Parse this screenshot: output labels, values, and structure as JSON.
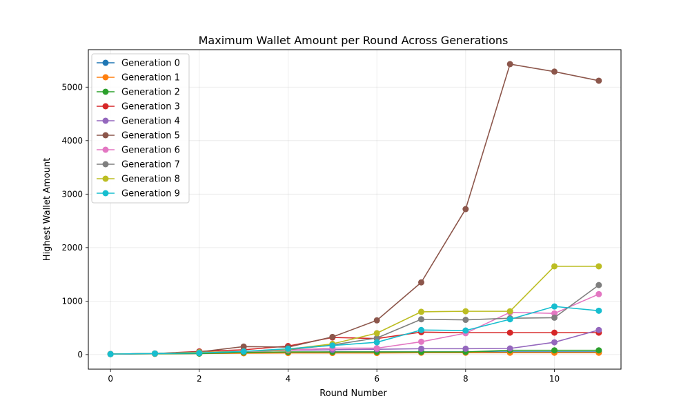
{
  "chart_data": {
    "type": "line",
    "title": "Maximum Wallet Amount per Round Across Generations",
    "xlabel": "Round Number",
    "ylabel": "Highest Wallet Amount",
    "xlim": [
      -0.5,
      11.5
    ],
    "ylim": [
      -272,
      5700
    ],
    "xticks": [
      0,
      2,
      4,
      6,
      8,
      10
    ],
    "yticks": [
      0,
      1000,
      2000,
      3000,
      4000,
      5000
    ],
    "grid": true,
    "legend_position": "upper-left",
    "x": [
      0,
      1,
      2,
      3,
      4,
      5,
      6,
      7,
      8,
      9,
      10,
      11
    ],
    "series": [
      {
        "name": "Generation 0",
        "color": "#1f77b4",
        "values": [
          10,
          15,
          20,
          30,
          40,
          50,
          50,
          50,
          50,
          50,
          50,
          50
        ]
      },
      {
        "name": "Generation 1",
        "color": "#ff7f0e",
        "values": [
          10,
          15,
          20,
          25,
          30,
          30,
          30,
          35,
          35,
          35,
          35,
          35
        ]
      },
      {
        "name": "Generation 2",
        "color": "#2ca02c",
        "values": [
          10,
          15,
          20,
          40,
          50,
          50,
          50,
          50,
          50,
          80,
          80,
          80
        ]
      },
      {
        "name": "Generation 3",
        "color": "#d62728",
        "values": [
          10,
          20,
          60,
          90,
          160,
          320,
          300,
          420,
          410,
          410,
          410,
          410
        ]
      },
      {
        "name": "Generation 4",
        "color": "#9467bd",
        "values": [
          10,
          20,
          40,
          60,
          80,
          90,
          100,
          110,
          110,
          115,
          230,
          460
        ]
      },
      {
        "name": "Generation 5",
        "color": "#8c564b",
        "values": [
          10,
          20,
          50,
          150,
          140,
          330,
          640,
          1350,
          2720,
          5430,
          5290,
          5120
        ]
      },
      {
        "name": "Generation 6",
        "color": "#e377c2",
        "values": [
          10,
          20,
          40,
          60,
          80,
          120,
          120,
          240,
          400,
          790,
          770,
          1130
        ]
      },
      {
        "name": "Generation 7",
        "color": "#7f7f7f",
        "values": [
          10,
          20,
          40,
          60,
          90,
          180,
          310,
          660,
          650,
          680,
          690,
          1300
        ]
      },
      {
        "name": "Generation 8",
        "color": "#bcbd22",
        "values": [
          10,
          20,
          40,
          60,
          100,
          200,
          400,
          800,
          810,
          810,
          1650,
          1650
        ]
      },
      {
        "name": "Generation 9",
        "color": "#17becf",
        "values": [
          10,
          20,
          30,
          60,
          110,
          170,
          230,
          460,
          450,
          660,
          900,
          820
        ]
      }
    ]
  }
}
